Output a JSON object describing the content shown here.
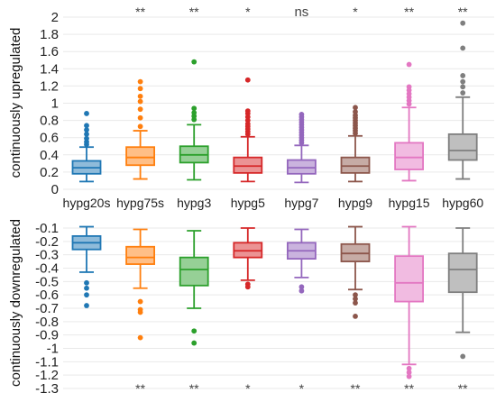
{
  "chart_data": [
    {
      "type": "box",
      "ylabel": "continuously upregulated",
      "ylim": [
        0,
        2
      ],
      "yticks": [
        0,
        0.2,
        0.4,
        0.6,
        0.8,
        1,
        1.2,
        1.4,
        1.6,
        1.8,
        2
      ],
      "ytick_labels": [
        "0",
        "0.2",
        "0.4",
        "0.6",
        "0.8",
        "1",
        "1.2",
        "1.4",
        "1.6",
        "1.8",
        "2"
      ],
      "grid": true,
      "significance_position": "top",
      "categories": [
        "hypg20s",
        "hypg75s",
        "hypg3",
        "hypg5",
        "hypg7",
        "hypg9",
        "hypg15",
        "hypg60"
      ],
      "significance": [
        "",
        "**",
        "**",
        "*",
        "ns",
        "*",
        "**",
        "**"
      ],
      "boxes": [
        {
          "name": "hypg20s",
          "color": "#1f77b4",
          "whisker_low": 0.09,
          "q1": 0.18,
          "median": 0.25,
          "q3": 0.33,
          "whisker_high": 0.49,
          "outliers": [
            0.52,
            0.55,
            0.59,
            0.64,
            0.69,
            0.74,
            0.88
          ]
        },
        {
          "name": "hypg75s",
          "color": "#ff7f0e",
          "whisker_low": 0.12,
          "q1": 0.28,
          "median": 0.37,
          "q3": 0.49,
          "whisker_high": 0.68,
          "outliers": [
            0.73,
            0.83,
            0.93,
            1.02,
            1.08,
            1.17,
            1.25
          ]
        },
        {
          "name": "hypg3",
          "color": "#2ca02c",
          "whisker_low": 0.11,
          "q1": 0.31,
          "median": 0.4,
          "q3": 0.5,
          "whisker_high": 0.75,
          "outliers": [
            0.81,
            0.85,
            0.89,
            0.94,
            1.48
          ]
        },
        {
          "name": "hypg5",
          "color": "#d62728",
          "whisker_low": 0.09,
          "q1": 0.19,
          "median": 0.27,
          "q3": 0.37,
          "whisker_high": 0.61,
          "outliers": [
            0.64,
            0.67,
            0.7,
            0.73,
            0.76,
            0.8,
            0.84,
            0.88,
            0.91,
            1.27
          ]
        },
        {
          "name": "hypg7",
          "color": "#9467bd",
          "whisker_low": 0.08,
          "q1": 0.18,
          "median": 0.25,
          "q3": 0.34,
          "whisker_high": 0.51,
          "outliers": [
            0.54,
            0.57,
            0.6,
            0.63,
            0.66,
            0.69,
            0.72,
            0.75,
            0.78,
            0.81,
            0.84,
            0.87
          ]
        },
        {
          "name": "hypg9",
          "color": "#8c564b",
          "whisker_low": 0.09,
          "q1": 0.19,
          "median": 0.27,
          "q3": 0.37,
          "whisker_high": 0.62,
          "outliers": [
            0.65,
            0.68,
            0.71,
            0.74,
            0.77,
            0.8,
            0.83,
            0.86,
            0.9,
            0.95
          ]
        },
        {
          "name": "hypg15",
          "color": "#e377c2",
          "whisker_low": 0.1,
          "q1": 0.23,
          "median": 0.37,
          "q3": 0.54,
          "whisker_high": 0.95,
          "outliers": [
            0.99,
            1.03,
            1.07,
            1.11,
            1.15,
            1.19,
            1.45
          ]
        },
        {
          "name": "hypg60",
          "color": "#7f7f7f",
          "whisker_low": 0.12,
          "q1": 0.34,
          "median": 0.45,
          "q3": 0.64,
          "whisker_high": 1.07,
          "outliers": [
            1.12,
            1.19,
            1.25,
            1.32,
            1.64,
            1.93
          ]
        }
      ]
    },
    {
      "type": "box",
      "ylabel": "continuously downregulated",
      "ylim": [
        -1.3,
        -0.1
      ],
      "yticks": [
        -0.1,
        -0.2,
        -0.3,
        -0.4,
        -0.5,
        -0.6,
        -0.7,
        -0.8,
        -0.9,
        -1,
        -1.1,
        -1.2,
        -1.3
      ],
      "ytick_labels": [
        "-0.1",
        "-0.2",
        "-0.3",
        "-0.4",
        "-0.5",
        "-0.6",
        "-0.7",
        "-0.8",
        "-0.9",
        "-1",
        "-1.1",
        "-1.2",
        "-1.3"
      ],
      "grid": true,
      "significance_position": "bottom",
      "categories": [
        "hypg20s",
        "hypg75s",
        "hypg3",
        "hypg5",
        "hypg7",
        "hypg9",
        "hypg15",
        "hypg60"
      ],
      "significance": [
        "",
        "**",
        "**",
        "*",
        "*",
        "**",
        "**",
        "**"
      ],
      "boxes": [
        {
          "name": "hypg20s",
          "color": "#1f77b4",
          "whisker_low": -0.43,
          "q1": -0.26,
          "median": -0.21,
          "q3": -0.16,
          "whisker_high": -0.09,
          "outliers": [
            -0.51,
            -0.55,
            -0.6,
            -0.68
          ]
        },
        {
          "name": "hypg75s",
          "color": "#ff7f0e",
          "whisker_low": -0.55,
          "q1": -0.37,
          "median": -0.32,
          "q3": -0.24,
          "whisker_high": -0.11,
          "outliers": [
            -0.65,
            -0.71,
            -0.73,
            -0.92
          ]
        },
        {
          "name": "hypg3",
          "color": "#2ca02c",
          "whisker_low": -0.7,
          "q1": -0.53,
          "median": -0.41,
          "q3": -0.32,
          "whisker_high": -0.12,
          "outliers": [
            -0.87,
            -0.96
          ]
        },
        {
          "name": "hypg5",
          "color": "#d62728",
          "whisker_low": -0.49,
          "q1": -0.32,
          "median": -0.27,
          "q3": -0.21,
          "whisker_high": -0.1,
          "outliers": [
            -0.52,
            -0.54
          ]
        },
        {
          "name": "hypg7",
          "color": "#9467bd",
          "whisker_low": -0.47,
          "q1": -0.33,
          "median": -0.27,
          "q3": -0.21,
          "whisker_high": -0.11,
          "outliers": [
            -0.54,
            -0.57
          ]
        },
        {
          "name": "hypg9",
          "color": "#8c564b",
          "whisker_low": -0.56,
          "q1": -0.35,
          "median": -0.29,
          "q3": -0.22,
          "whisker_high": -0.09,
          "outliers": [
            -0.6,
            -0.63,
            -0.66,
            -0.76
          ]
        },
        {
          "name": "hypg15",
          "color": "#e377c2",
          "whisker_low": -1.12,
          "q1": -0.65,
          "median": -0.51,
          "q3": -0.31,
          "whisker_high": -0.09,
          "outliers": [
            -1.15,
            -1.18,
            -1.21
          ]
        },
        {
          "name": "hypg60",
          "color": "#7f7f7f",
          "whisker_low": -0.88,
          "q1": -0.58,
          "median": -0.41,
          "q3": -0.29,
          "whisker_high": -0.1,
          "outliers": [
            -1.06
          ]
        }
      ]
    }
  ]
}
